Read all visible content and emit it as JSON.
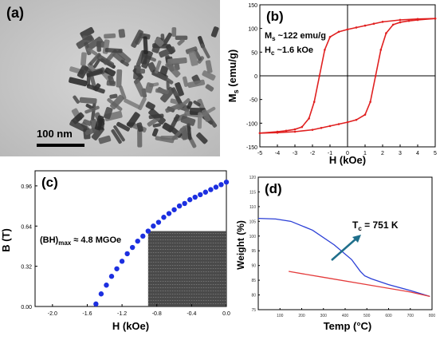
{
  "figure": {
    "panel_a": {
      "label": "(a)",
      "scale_bar_label": "100 nm"
    },
    "panel_b": {
      "label": "(b)",
      "annotation_ms": "M",
      "annotation_ms_sub": "s",
      "annotation_ms_value": " ~122 emu/g",
      "annotation_hc": "H",
      "annotation_hc_sub": "c",
      "annotation_hc_value": " ~1.6 kOe"
    },
    "panel_c": {
      "label": "(c)",
      "annotation_prefix": "(BH)",
      "annotation_sub": "max",
      "annotation_value": " ≈ 4.8 MGOe"
    },
    "panel_d": {
      "label": "(d)",
      "annotation_prefix": "T",
      "annotation_sub": "c",
      "annotation_value": " = 751 K"
    }
  },
  "chart_data": [
    {
      "type": "line",
      "panel": "b",
      "xlabel": "H (kOe)",
      "ylabel": "M_s (emu/g)",
      "xlim": [
        -5,
        5
      ],
      "ylim": [
        -150,
        150
      ],
      "xticks": [
        "-5",
        "-4",
        "-3",
        "-2",
        "-1",
        "0",
        "1",
        "2",
        "3",
        "4",
        "5"
      ],
      "yticks": [
        "-150",
        "-100",
        "-50",
        "0",
        "50",
        "100",
        "150"
      ],
      "series": [
        {
          "values_desc": "descending branch",
          "x": [
            5,
            4,
            3,
            2,
            1.5,
            1,
            0.5,
            0,
            -0.5,
            -1,
            -1.3,
            -1.6,
            -1.9,
            -2.2,
            -2.6,
            -3,
            -3.5,
            -4,
            -5
          ],
          "y": [
            121,
            120,
            118,
            114,
            110,
            106,
            102,
            98,
            93,
            82,
            55,
            0,
            -55,
            -90,
            -108,
            -113,
            -116,
            -118,
            -121
          ]
        },
        {
          "values_desc": "ascending branch",
          "x": [
            -5,
            -4,
            -3,
            -2,
            -1.5,
            -1,
            -0.5,
            0,
            0.5,
            1,
            1.3,
            1.6,
            1.9,
            2.2,
            2.6,
            3,
            3.5,
            4,
            5
          ],
          "y": [
            -121,
            -120,
            -118,
            -114,
            -110,
            -106,
            -102,
            -98,
            -93,
            -82,
            -55,
            0,
            55,
            90,
            108,
            113,
            116,
            118,
            121
          ]
        }
      ]
    },
    {
      "type": "scatter",
      "panel": "c",
      "xlabel": "H (kOe)",
      "ylabel": "B (T)",
      "xlim": [
        -2.2,
        0
      ],
      "ylim": [
        0,
        1.08
      ],
      "xticks": [
        "-2.0",
        "-1.6",
        "-1.2",
        "-0.8",
        "-0.4",
        "0.0"
      ],
      "yticks": [
        "0.00",
        "0.32",
        "0.64",
        "0.96"
      ],
      "x": [
        -1.5,
        -1.44,
        -1.38,
        -1.32,
        -1.26,
        -1.2,
        -1.14,
        -1.08,
        -1.02,
        -0.96,
        -0.9,
        -0.84,
        -0.78,
        -0.72,
        -0.66,
        -0.6,
        -0.54,
        -0.48,
        -0.42,
        -0.36,
        -0.3,
        -0.24,
        -0.18,
        -0.12,
        -0.06,
        0
      ],
      "y": [
        0.02,
        0.1,
        0.17,
        0.24,
        0.3,
        0.36,
        0.42,
        0.47,
        0.52,
        0.56,
        0.6,
        0.64,
        0.67,
        0.71,
        0.74,
        0.77,
        0.8,
        0.82,
        0.85,
        0.87,
        0.89,
        0.91,
        0.93,
        0.95,
        0.97,
        0.99
      ],
      "shaded_region": {
        "x_from": -0.9,
        "x_to": 0,
        "y_from": 0,
        "y_to": 0.6
      }
    },
    {
      "type": "line",
      "panel": "d",
      "xlabel": "Temp (°C)",
      "ylabel": "Weight (%)",
      "xlim": [
        0,
        800
      ],
      "ylim": [
        75,
        120
      ],
      "xticks": [
        "100",
        "200",
        "300",
        "400",
        "500",
        "600",
        "700",
        "800"
      ],
      "yticks": [
        "75",
        "80",
        "85",
        "90",
        "95",
        "100",
        "105",
        "110",
        "115",
        "120"
      ],
      "series": [
        {
          "color": "#2b3fd6",
          "x": [
            0,
            80,
            150,
            250,
            350,
            430,
            470,
            490,
            520,
            600,
            700,
            790
          ],
          "y": [
            106,
            105.8,
            105,
            102,
            97,
            92,
            88,
            86.5,
            85.5,
            83.5,
            81.5,
            79.5
          ]
        },
        {
          "color": "#e43b3b",
          "x": [
            140,
            300,
            500,
            700,
            790
          ],
          "y": [
            88,
            86,
            83.5,
            81,
            79.5
          ]
        }
      ],
      "arrow_color": "#1f6f8b"
    }
  ]
}
